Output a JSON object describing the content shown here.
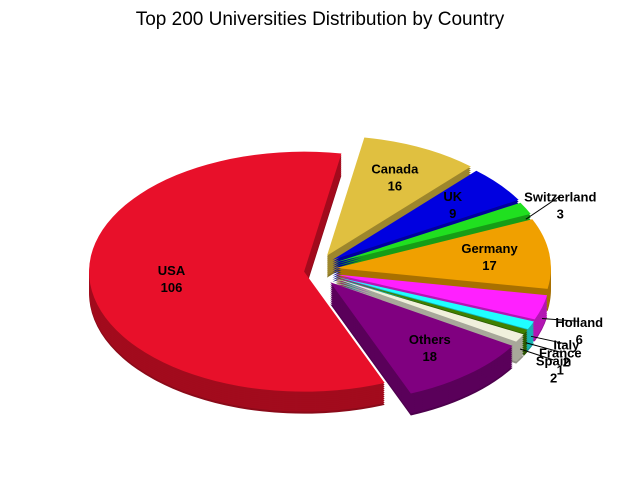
{
  "chart_data": {
    "type": "pie",
    "title": "Top 200 Universities Distribution by Country",
    "categories": [
      "Canada",
      "UK",
      "Switzerland",
      "Germany",
      "Holland",
      "Italy",
      "France",
      "Spain",
      "Others",
      "USA"
    ],
    "values": [
      16,
      9,
      3,
      17,
      6,
      2,
      1,
      2,
      18,
      106
    ],
    "colors": [
      "#e0c040",
      "#0000e0",
      "#20e020",
      "#f0a000",
      "#ff20ff",
      "#20ffff",
      "#408000",
      "#f0f0dc",
      "#800080",
      "#e8102a"
    ]
  }
}
